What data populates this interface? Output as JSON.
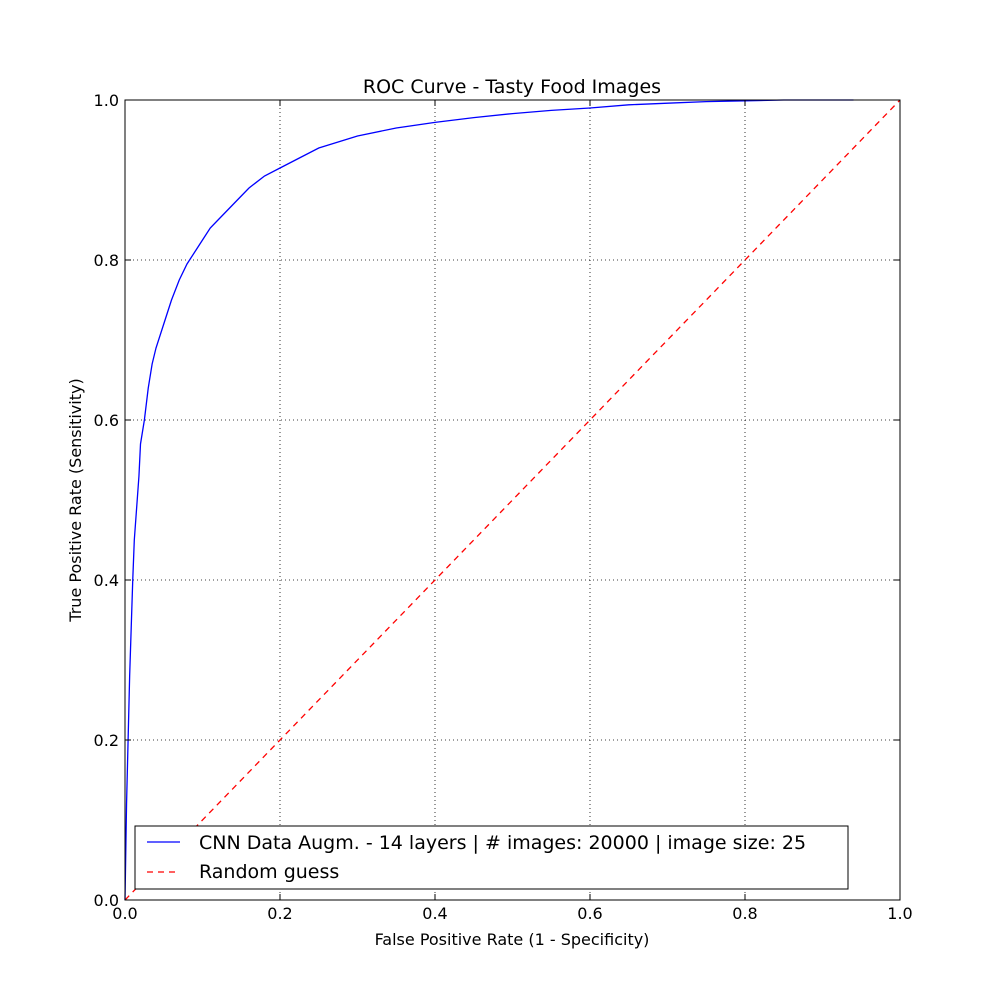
{
  "chart_data": {
    "type": "line",
    "title": "ROC Curve - Tasty Food Images",
    "xlabel": "False Positive Rate (1 - Specificity)",
    "ylabel": "True Positive Rate (Sensitivity)",
    "xlim": [
      0.0,
      1.0
    ],
    "ylim": [
      0.0,
      1.0
    ],
    "xticks": [
      "0.0",
      "0.2",
      "0.4",
      "0.6",
      "0.8",
      "1.0"
    ],
    "yticks": [
      "0.0",
      "0.2",
      "0.4",
      "0.6",
      "0.8",
      "1.0"
    ],
    "grid": true,
    "grid_style": "dotted",
    "legend_placement": "bottom-left",
    "series": [
      {
        "name": "CNN Data Augm. - 14 layers | # images: 20000 | image size: 25",
        "color": "#0000ff",
        "style": "solid",
        "x": [
          0.0,
          0.002,
          0.004,
          0.006,
          0.008,
          0.01,
          0.012,
          0.015,
          0.018,
          0.02,
          0.025,
          0.03,
          0.035,
          0.04,
          0.05,
          0.06,
          0.07,
          0.08,
          0.09,
          0.1,
          0.11,
          0.12,
          0.14,
          0.16,
          0.18,
          0.2,
          0.22,
          0.25,
          0.3,
          0.35,
          0.4,
          0.45,
          0.5,
          0.55,
          0.6,
          0.65,
          0.7,
          0.75,
          0.8,
          0.85,
          0.9,
          0.94
        ],
        "y": [
          0.0,
          0.12,
          0.2,
          0.28,
          0.34,
          0.4,
          0.45,
          0.49,
          0.53,
          0.57,
          0.6,
          0.64,
          0.67,
          0.69,
          0.72,
          0.75,
          0.775,
          0.795,
          0.81,
          0.825,
          0.84,
          0.85,
          0.87,
          0.89,
          0.905,
          0.915,
          0.925,
          0.94,
          0.955,
          0.965,
          0.972,
          0.978,
          0.983,
          0.987,
          0.99,
          0.994,
          0.996,
          0.998,
          0.999,
          1.0,
          1.0,
          1.0
        ]
      },
      {
        "name": "Random guess",
        "color": "#ff0000",
        "style": "dashed",
        "x": [
          0.0,
          1.0
        ],
        "y": [
          0.0,
          1.0
        ]
      }
    ]
  }
}
